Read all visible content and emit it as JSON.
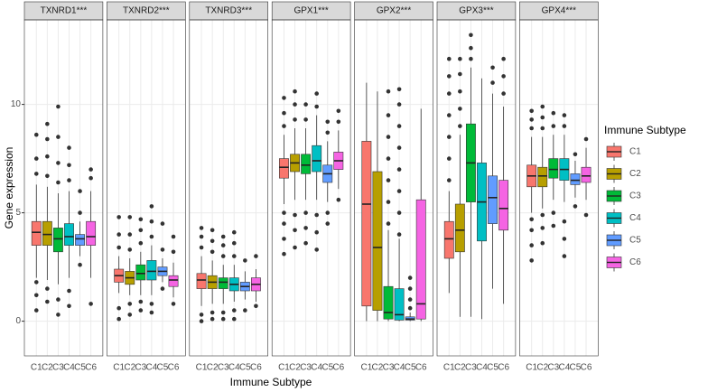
{
  "chart_data": {
    "type": "boxplot",
    "x_label": "Immune Subtype",
    "y_label": "Gene expression",
    "legend_title": "Immune Subtype",
    "categories": [
      "C1",
      "C2",
      "C3",
      "C4",
      "C5",
      "C6"
    ],
    "series": [
      {
        "name": "C1",
        "color": "#F8766D"
      },
      {
        "name": "C2",
        "color": "#B79F00"
      },
      {
        "name": "C3",
        "color": "#00BA38"
      },
      {
        "name": "C4",
        "color": "#00BFC4"
      },
      {
        "name": "C5",
        "color": "#619CFF"
      },
      {
        "name": "C6",
        "color": "#F564E3"
      }
    ],
    "ylim": [
      -1.6,
      13.9
    ],
    "yticks": [
      0,
      5,
      10
    ],
    "grid": true,
    "facets": [
      {
        "title": "TXNRD1***",
        "boxes": [
          {
            "low": 2.0,
            "q1": 3.5,
            "median": 4.1,
            "q3": 4.6,
            "high": 6.3,
            "outliers": [
              0.5,
              1.2,
              1.8,
              6.8,
              7.5,
              8.6
            ]
          },
          {
            "low": 1.9,
            "q1": 3.5,
            "median": 4.0,
            "q3": 4.6,
            "high": 6.2,
            "outliers": [
              0.9,
              1.5,
              6.7,
              7.6,
              8.4,
              9.1
            ]
          },
          {
            "low": 1.7,
            "q1": 3.2,
            "median": 3.8,
            "q3": 4.3,
            "high": 5.9,
            "outliers": [
              0.3,
              1.0,
              6.4,
              7.3,
              8.5,
              9.9
            ]
          },
          {
            "low": 2.0,
            "q1": 3.5,
            "median": 3.9,
            "q3": 4.5,
            "high": 6.0,
            "outliers": [
              0.7,
              1.4,
              6.5,
              7.2,
              8.0
            ]
          },
          {
            "low": 3.0,
            "q1": 3.5,
            "median": 3.8,
            "q3": 4.0,
            "high": 4.6,
            "outliers": [
              2.6,
              5.0,
              6.0
            ]
          },
          {
            "low": 2.0,
            "q1": 3.5,
            "median": 3.9,
            "q3": 4.6,
            "high": 6.0,
            "outliers": [
              0.8,
              6.6,
              7.0
            ]
          }
        ]
      },
      {
        "title": "TXNRD2***",
        "boxes": [
          {
            "low": 1.3,
            "q1": 1.8,
            "median": 2.1,
            "q3": 2.4,
            "high": 3.0,
            "outliers": [
              0.1,
              0.6,
              3.4,
              4.0,
              4.8
            ]
          },
          {
            "low": 1.2,
            "q1": 1.7,
            "median": 2.0,
            "q3": 2.3,
            "high": 2.9,
            "outliers": [
              0.3,
              0.8,
              3.3,
              4.0,
              4.8
            ]
          },
          {
            "low": 1.2,
            "q1": 1.9,
            "median": 2.2,
            "q3": 2.6,
            "high": 3.2,
            "outliers": [
              0.5,
              0.9,
              3.6,
              4.2,
              4.7
            ]
          },
          {
            "low": 1.2,
            "q1": 1.9,
            "median": 2.3,
            "q3": 2.8,
            "high": 3.5,
            "outliers": [
              0.4,
              0.8,
              3.9,
              4.6,
              5.3
            ]
          },
          {
            "low": 1.8,
            "q1": 2.1,
            "median": 2.3,
            "q3": 2.5,
            "high": 2.9,
            "outliers": [
              1.5,
              3.3,
              4.5
            ]
          },
          {
            "low": 1.1,
            "q1": 1.6,
            "median": 1.9,
            "q3": 2.1,
            "high": 2.7,
            "outliers": [
              0.8,
              3.2,
              3.9
            ]
          }
        ]
      },
      {
        "title": "TXNRD3***",
        "boxes": [
          {
            "low": 0.7,
            "q1": 1.5,
            "median": 1.9,
            "q3": 2.2,
            "high": 3.0,
            "outliers": [
              0.0,
              0.3,
              3.4,
              3.9,
              4.3
            ]
          },
          {
            "low": 0.8,
            "q1": 1.5,
            "median": 1.8,
            "q3": 2.1,
            "high": 2.8,
            "outliers": [
              0.1,
              0.4,
              3.2,
              3.7,
              4.2
            ]
          },
          {
            "low": 0.8,
            "q1": 1.5,
            "median": 1.8,
            "q3": 2.0,
            "high": 2.6,
            "outliers": [
              0.1,
              0.4,
              3.0,
              3.5,
              3.9
            ]
          },
          {
            "low": 0.9,
            "q1": 1.4,
            "median": 1.7,
            "q3": 2.0,
            "high": 2.6,
            "outliers": [
              0.1,
              0.5,
              3.0,
              3.6,
              4.1
            ]
          },
          {
            "low": 1.0,
            "q1": 1.4,
            "median": 1.6,
            "q3": 1.8,
            "high": 2.3,
            "outliers": [
              0.5,
              2.8
            ]
          },
          {
            "low": 0.9,
            "q1": 1.4,
            "median": 1.7,
            "q3": 2.0,
            "high": 2.4,
            "outliers": [
              0.7,
              3.0
            ]
          }
        ]
      },
      {
        "title": "GPX1***",
        "boxes": [
          {
            "low": 5.4,
            "q1": 6.6,
            "median": 7.1,
            "q3": 7.5,
            "high": 8.6,
            "outliers": [
              3.1,
              3.8,
              4.5,
              5.0,
              9.0,
              9.6,
              10.3
            ]
          },
          {
            "low": 5.6,
            "q1": 6.9,
            "median": 7.3,
            "q3": 7.7,
            "high": 8.9,
            "outliers": [
              3.4,
              4.2,
              4.9,
              9.3,
              10.0,
              10.6
            ]
          },
          {
            "low": 5.6,
            "q1": 6.8,
            "median": 7.2,
            "q3": 7.7,
            "high": 8.9,
            "outliers": [
              3.6,
              4.3,
              5.0,
              9.3,
              10.0
            ]
          },
          {
            "low": 5.6,
            "q1": 6.9,
            "median": 7.4,
            "q3": 8.1,
            "high": 9.5,
            "outliers": [
              3.3,
              4.1,
              4.9,
              9.9,
              10.5
            ]
          },
          {
            "low": 5.5,
            "q1": 6.4,
            "median": 6.8,
            "q3": 7.2,
            "high": 8.3,
            "outliers": [
              4.5,
              5.0,
              8.7,
              9.2
            ]
          },
          {
            "low": 6.1,
            "q1": 7.0,
            "median": 7.4,
            "q3": 7.8,
            "high": 8.8,
            "outliers": [
              5.6,
              9.2,
              9.7
            ]
          }
        ]
      },
      {
        "title": "GPX2***",
        "boxes": [
          {
            "low": 0.0,
            "q1": 0.7,
            "median": 5.4,
            "q3": 8.3,
            "high": 11.0,
            "outliers": []
          },
          {
            "low": 0.0,
            "q1": 0.5,
            "median": 3.4,
            "q3": 6.9,
            "high": 10.6,
            "outliers": []
          },
          {
            "low": 0.0,
            "q1": 0.1,
            "median": 0.4,
            "q3": 1.6,
            "high": 4.2,
            "outliers": [
              4.5,
              5.5,
              6.5,
              7.5,
              8.5,
              9.5,
              10.6
            ]
          },
          {
            "low": 0.0,
            "q1": 0.05,
            "median": 0.3,
            "q3": 1.5,
            "high": 3.8,
            "outliers": [
              4.0,
              5.0,
              6.0,
              7.0,
              8.0,
              9.0,
              10.0,
              10.7
            ]
          },
          {
            "low": 0.0,
            "q1": 0.05,
            "median": 0.1,
            "q3": 0.2,
            "high": 0.4,
            "outliers": [
              0.6,
              1.0,
              1.5,
              2.0
            ]
          },
          {
            "low": 0.0,
            "q1": 0.1,
            "median": 0.8,
            "q3": 5.6,
            "high": 9.8,
            "outliers": []
          }
        ]
      },
      {
        "title": "GPX3***",
        "boxes": [
          {
            "low": 1.3,
            "q1": 2.9,
            "median": 3.8,
            "q3": 4.6,
            "high": 6.0,
            "outliers": [
              6.5,
              7.5,
              8.5,
              9.5,
              10.5,
              11.3,
              12.1
            ]
          },
          {
            "low": 0.2,
            "q1": 3.2,
            "median": 4.2,
            "q3": 5.4,
            "high": 8.6,
            "outliers": [
              9.0,
              9.8,
              10.6,
              11.4,
              12.1
            ]
          },
          {
            "low": 0.2,
            "q1": 5.5,
            "median": 7.3,
            "q3": 9.1,
            "high": 11.7,
            "outliers": [
              12.1,
              12.6,
              13.2
            ]
          },
          {
            "low": 0.1,
            "q1": 3.7,
            "median": 5.5,
            "q3": 7.3,
            "high": 11.2,
            "outliers": []
          },
          {
            "low": 1.5,
            "q1": 4.5,
            "median": 5.7,
            "q3": 6.7,
            "high": 10.5,
            "outliers": [
              11.0,
              11.7
            ]
          },
          {
            "low": 0.8,
            "q1": 4.2,
            "median": 5.2,
            "q3": 6.5,
            "high": 9.9,
            "outliers": [
              10.5,
              11.3,
              12.1
            ]
          }
        ]
      },
      {
        "title": "GPX4***",
        "boxes": [
          {
            "low": 5.0,
            "q1": 6.2,
            "median": 6.7,
            "q3": 7.2,
            "high": 8.5,
            "outliers": [
              2.8,
              3.5,
              4.2,
              4.7,
              8.9,
              9.3,
              9.7
            ]
          },
          {
            "low": 5.2,
            "q1": 6.2,
            "median": 6.7,
            "q3": 7.1,
            "high": 8.5,
            "outliers": [
              3.6,
              4.3,
              4.9,
              8.9,
              9.4,
              9.9
            ]
          },
          {
            "low": 5.6,
            "q1": 6.6,
            "median": 7.0,
            "q3": 7.5,
            "high": 8.6,
            "outliers": [
              4.4,
              5.0,
              9.0,
              9.6
            ]
          },
          {
            "low": 5.5,
            "q1": 6.5,
            "median": 7.0,
            "q3": 7.5,
            "high": 8.6,
            "outliers": [
              3.0,
              3.8,
              4.6,
              9.0,
              9.5
            ]
          },
          {
            "low": 5.7,
            "q1": 6.3,
            "median": 6.5,
            "q3": 6.8,
            "high": 7.4,
            "outliers": [
              5.3,
              7.7
            ]
          },
          {
            "low": 5.6,
            "q1": 6.4,
            "median": 6.7,
            "q3": 7.1,
            "high": 8.0,
            "outliers": [
              4.9,
              8.4
            ]
          }
        ]
      }
    ]
  }
}
